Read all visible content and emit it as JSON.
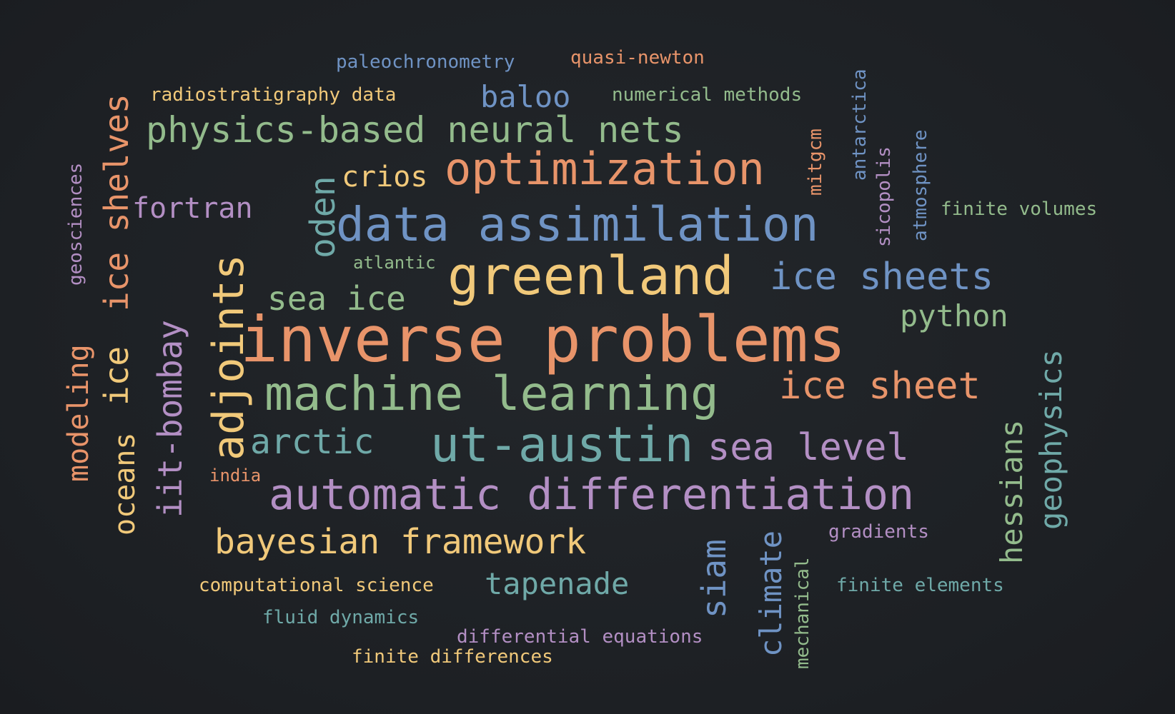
{
  "words": {
    "paleochronometry": "paleochronometry",
    "quasi_newton": "quasi-newton",
    "radiostratigraphy_data": "radiostratigraphy data",
    "baloo": "baloo",
    "numerical_methods": "numerical methods",
    "physics_based_neural_nets": "physics-based neural nets",
    "crios": "crios",
    "optimization": "optimization",
    "fortran": "fortran",
    "oden": "oden",
    "data_assimilation": "data assimilation",
    "atlantic": "atlantic",
    "greenland": "greenland",
    "ice_sheets": "ice sheets",
    "sea_ice": "sea ice",
    "python": "python",
    "inverse_problems": "inverse problems",
    "machine_learning": "machine learning",
    "ice_sheet": "ice sheet",
    "arctic": "arctic",
    "ut_austin": "ut-austin",
    "sea_level": "sea level",
    "india": "india",
    "automatic_differentiation": "automatic differentiation",
    "bayesian_framework": "bayesian framework",
    "gradients": "gradients",
    "computational_science": "computational science",
    "tapenade": "tapenade",
    "finite_elements": "finite elements",
    "fluid_dynamics": "fluid dynamics",
    "differential_equations": "differential equations",
    "finite_differences": "finite differences",
    "finite_volumes": "finite volumes",
    "geosciences": "geosciences",
    "ice_shelves": "ice shelves",
    "modeling": "modeling",
    "oceans": "oceans",
    "ice": "ice",
    "iit_bombay": "iit-bombay",
    "adjoints": "adjoints",
    "mitgcm": "mitgcm",
    "antarctica": "antarctica",
    "sicopolis": "sicopolis",
    "atmosphere": "atmosphere",
    "geophysics": "geophysics",
    "hessians": "hessians",
    "siam": "siam",
    "climate": "climate",
    "mechanical": "mechanical"
  }
}
